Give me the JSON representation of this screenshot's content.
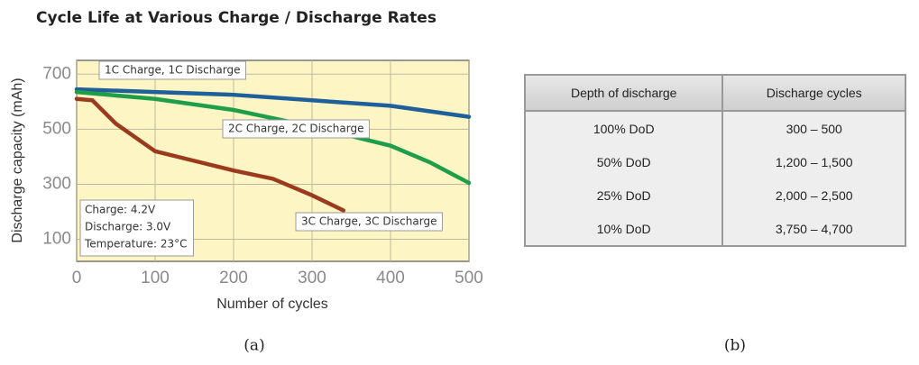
{
  "chart_data": {
    "type": "line",
    "title": "Cycle Life at Various Charge / Discharge Rates",
    "ylabel": "Discharge capacity (mAh)",
    "xlabel": "Number of cycles",
    "xlim": [
      0,
      500
    ],
    "ylim": [
      20,
      750
    ],
    "xticks": [
      0,
      100,
      200,
      300,
      400,
      500
    ],
    "yticks": [
      100,
      300,
      500,
      700
    ],
    "grid": true,
    "series": [
      {
        "name": "1C Charge, 1C Discharge",
        "color": "#1f5f9a",
        "x": [
          0,
          100,
          200,
          300,
          400,
          500
        ],
        "values": [
          645,
          635,
          625,
          605,
          585,
          545
        ]
      },
      {
        "name": "2C Charge, 2C Discharge",
        "color": "#1e9e4a",
        "x": [
          0,
          100,
          200,
          300,
          400,
          450,
          500
        ],
        "values": [
          635,
          610,
          570,
          510,
          440,
          380,
          305
        ]
      },
      {
        "name": "3C Charge, 3C Discharge",
        "color": "#9c3a1e",
        "x": [
          0,
          20,
          50,
          100,
          150,
          200,
          250,
          300,
          340
        ],
        "values": [
          610,
          605,
          520,
          420,
          385,
          350,
          320,
          260,
          205
        ]
      }
    ],
    "annotations": [
      "Charge: 4.2V",
      "Discharge: 3.0V",
      "Temperature: 23°C"
    ]
  },
  "table": {
    "header": [
      "Depth of discharge",
      "Discharge cycles"
    ],
    "rows": [
      [
        "100% DoD",
        "300 – 500"
      ],
      [
        "50% DoD",
        "1,200 – 1,500"
      ],
      [
        "25% DoD",
        "2,000 – 2,500"
      ],
      [
        "10% DoD",
        "3,750 – 4,700"
      ]
    ]
  },
  "captions": [
    "(a)",
    "(b)"
  ]
}
